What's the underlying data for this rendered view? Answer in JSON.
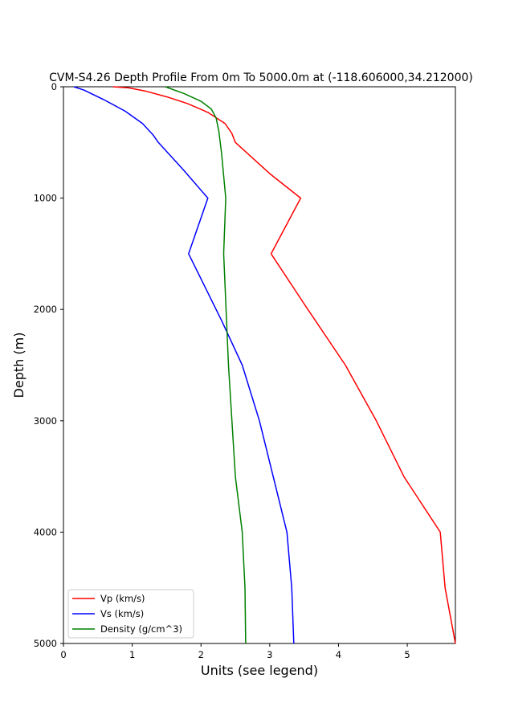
{
  "chart_data": {
    "type": "line",
    "title": "CVM-S4.26 Depth Profile From 0m To 5000.0m at (-118.606000,34.212000)",
    "xlabel": "Units (see legend)",
    "ylabel": "Depth (m)",
    "xlim": [
      0,
      5.7
    ],
    "ylim": [
      5000,
      0
    ],
    "y_inverted": true,
    "xticks": [
      0,
      1,
      2,
      3,
      4,
      5
    ],
    "yticks": [
      0,
      1000,
      2000,
      3000,
      4000,
      5000
    ],
    "grid": false,
    "legend_position": "lower-left",
    "series": [
      {
        "name": "Vp (km/s)",
        "color": "#ff0000",
        "points": [
          [
            0.72,
            0
          ],
          [
            0.95,
            10
          ],
          [
            1.2,
            40
          ],
          [
            1.5,
            90
          ],
          [
            1.8,
            150
          ],
          [
            2.1,
            230
          ],
          [
            2.35,
            330
          ],
          [
            2.45,
            420
          ],
          [
            2.5,
            500
          ],
          [
            3.0,
            780
          ],
          [
            3.45,
            1000
          ],
          [
            3.02,
            1500
          ],
          [
            3.5,
            1950
          ],
          [
            4.1,
            2500
          ],
          [
            4.55,
            3000
          ],
          [
            4.95,
            3500
          ],
          [
            5.48,
            4000
          ],
          [
            5.55,
            4500
          ],
          [
            5.7,
            5000
          ]
        ]
      },
      {
        "name": "Vs (km/s)",
        "color": "#0000ff",
        "points": [
          [
            0.15,
            0
          ],
          [
            0.3,
            30
          ],
          [
            0.6,
            120
          ],
          [
            0.9,
            220
          ],
          [
            1.15,
            330
          ],
          [
            1.3,
            430
          ],
          [
            1.38,
            500
          ],
          [
            1.75,
            750
          ],
          [
            2.1,
            1000
          ],
          [
            1.82,
            1500
          ],
          [
            2.3,
            2100
          ],
          [
            2.6,
            2500
          ],
          [
            2.85,
            3000
          ],
          [
            3.05,
            3500
          ],
          [
            3.25,
            4000
          ],
          [
            3.32,
            4500
          ],
          [
            3.35,
            5000
          ]
        ]
      },
      {
        "name": "Density (g/cm^3)",
        "color": "#008000",
        "points": [
          [
            1.48,
            0
          ],
          [
            1.75,
            60
          ],
          [
            2.0,
            130
          ],
          [
            2.15,
            200
          ],
          [
            2.22,
            280
          ],
          [
            2.26,
            400
          ],
          [
            2.3,
            600
          ],
          [
            2.36,
            1000
          ],
          [
            2.33,
            1500
          ],
          [
            2.4,
            2500
          ],
          [
            2.5,
            3500
          ],
          [
            2.6,
            4000
          ],
          [
            2.64,
            4500
          ],
          [
            2.65,
            5000
          ]
        ]
      }
    ]
  }
}
